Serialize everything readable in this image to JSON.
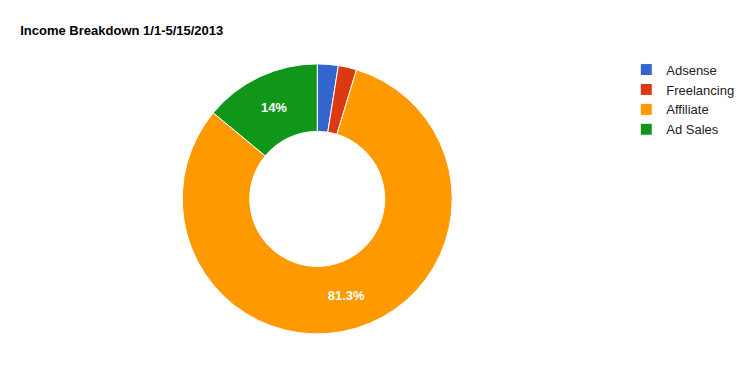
{
  "chart_data": {
    "type": "pie",
    "title": "Income Breakdown 1/1-5/15/2013",
    "categories": [
      "Adsense",
      "Freelancing",
      "Affiliate",
      "Ad Sales"
    ],
    "values": [
      2.5,
      2.2,
      81.3,
      14
    ],
    "colors": [
      "#3366cc",
      "#dc3912",
      "#ff9900",
      "#109618"
    ],
    "data_labels": true,
    "value_labels": [
      null,
      null,
      "81.3%",
      "14%"
    ],
    "legend": "top-right"
  }
}
